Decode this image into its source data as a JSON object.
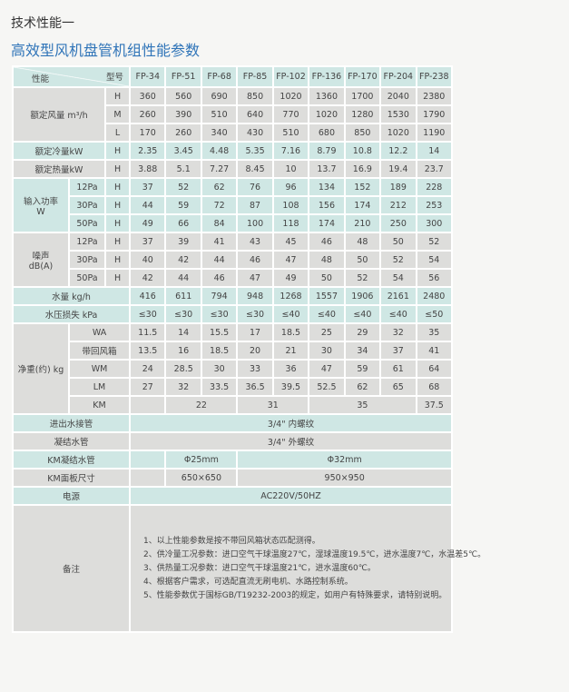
{
  "heading": "技术性能一",
  "title": "高效型风机盘管机组性能参数",
  "colors": {
    "title": "#2f74b8",
    "teal_row": "#cfe7e4",
    "gray_row": "#dddddb"
  },
  "table": {
    "header": {
      "performance_label": "性能",
      "model_label": "型号",
      "models": [
        "FP-34",
        "FP-51",
        "FP-68",
        "FP-85",
        "FP-102",
        "FP-136",
        "FP-170",
        "FP-204",
        "FP-238"
      ]
    },
    "airflow": {
      "label": "额定风量 m³/h",
      "rows": [
        {
          "speed": "H",
          "values": [
            "360",
            "560",
            "690",
            "850",
            "1020",
            "1360",
            "1700",
            "2040",
            "2380"
          ]
        },
        {
          "speed": "M",
          "values": [
            "260",
            "390",
            "510",
            "640",
            "770",
            "1020",
            "1280",
            "1530",
            "1790"
          ]
        },
        {
          "speed": "L",
          "values": [
            "170",
            "260",
            "340",
            "430",
            "510",
            "680",
            "850",
            "1020",
            "1190"
          ]
        }
      ]
    },
    "cooling": {
      "label": "额定冷量kW",
      "speed": "H",
      "values": [
        "2.35",
        "3.45",
        "4.48",
        "5.35",
        "7.16",
        "8.79",
        "10.8",
        "12.2",
        "14"
      ]
    },
    "heating": {
      "label": "额定热量kW",
      "speed": "H",
      "values": [
        "3.88",
        "5.1",
        "7.27",
        "8.45",
        "10",
        "13.7",
        "16.9",
        "19.4",
        "23.7"
      ]
    },
    "input_power": {
      "label": "输入功率",
      "unit": "W",
      "rows": [
        {
          "pressure": "12Pa",
          "speed": "H",
          "values": [
            "37",
            "52",
            "62",
            "76",
            "96",
            "134",
            "152",
            "189",
            "228"
          ]
        },
        {
          "pressure": "30Pa",
          "speed": "H",
          "values": [
            "44",
            "59",
            "72",
            "87",
            "108",
            "156",
            "174",
            "212",
            "253"
          ]
        },
        {
          "pressure": "50Pa",
          "speed": "H",
          "values": [
            "49",
            "66",
            "84",
            "100",
            "118",
            "174",
            "210",
            "250",
            "300"
          ]
        }
      ]
    },
    "noise": {
      "label": "噪声",
      "unit": "dB(A)",
      "rows": [
        {
          "pressure": "12Pa",
          "speed": "H",
          "values": [
            "37",
            "39",
            "41",
            "43",
            "45",
            "46",
            "48",
            "50",
            "52"
          ]
        },
        {
          "pressure": "30Pa",
          "speed": "H",
          "values": [
            "40",
            "42",
            "44",
            "46",
            "47",
            "48",
            "50",
            "52",
            "54"
          ]
        },
        {
          "pressure": "50Pa",
          "speed": "H",
          "values": [
            "42",
            "44",
            "46",
            "47",
            "49",
            "50",
            "52",
            "54",
            "56"
          ]
        }
      ]
    },
    "water_flow": {
      "label": "水量 kg/h",
      "values": [
        "416",
        "611",
        "794",
        "948",
        "1268",
        "1557",
        "1906",
        "2161",
        "2480"
      ]
    },
    "water_pressure_drop": {
      "label": "水压损失 kPa",
      "values": [
        "≤30",
        "≤30",
        "≤30",
        "≤30",
        "≤40",
        "≤40",
        "≤40",
        "≤40",
        "≤50"
      ]
    },
    "net_weight": {
      "label": "净重(约) kg",
      "rows": [
        {
          "type": "WA",
          "values": [
            "11.5",
            "14",
            "15.5",
            "17",
            "18.5",
            "25",
            "29",
            "32",
            "35"
          ]
        },
        {
          "type": "带回风箱",
          "values": [
            "13.5",
            "16",
            "18.5",
            "20",
            "21",
            "30",
            "34",
            "37",
            "41"
          ]
        },
        {
          "type": "WM",
          "values": [
            "24",
            "28.5",
            "30",
            "33",
            "36",
            "47",
            "59",
            "61",
            "64"
          ]
        },
        {
          "type": "LM",
          "values": [
            "27",
            "32",
            "33.5",
            "36.5",
            "39.5",
            "52.5",
            "62",
            "65",
            "68"
          ]
        },
        {
          "type": "KM",
          "values": [
            "",
            "22",
            "31",
            "35",
            "37.5"
          ]
        }
      ]
    },
    "water_connection": {
      "label": "进出水接管",
      "value": "3/4\" 内螺纹"
    },
    "condensate_pipe": {
      "label": "凝结水管",
      "value": "3/4\" 外螺纹"
    },
    "km_condensate_pipe": {
      "label": "KM凝结水管",
      "values": [
        "Φ25mm",
        "Φ32mm"
      ]
    },
    "km_panel_size": {
      "label": "KM面板尺寸",
      "values": [
        "650×650",
        "950×950"
      ]
    },
    "power": {
      "label": "电源",
      "value": "AC220V/50HZ"
    },
    "remarks": {
      "label": "备注",
      "notes": [
        "1、以上性能参数是按不带回风箱状态匹配测得。",
        "2、供冷量工况参数：进口空气干球温度27℃，湿球温度19.5℃，进水温度7℃，水温差5℃。",
        "3、供热量工况参数：进口空气干球温度21℃，进水温度60℃。",
        "4、根据客户需求，可选配直流无刷电机、水路控制系统。",
        "5、性能参数优于国标GB/T19232-2003的规定，如用户有特殊要求，请特别说明。"
      ]
    }
  }
}
